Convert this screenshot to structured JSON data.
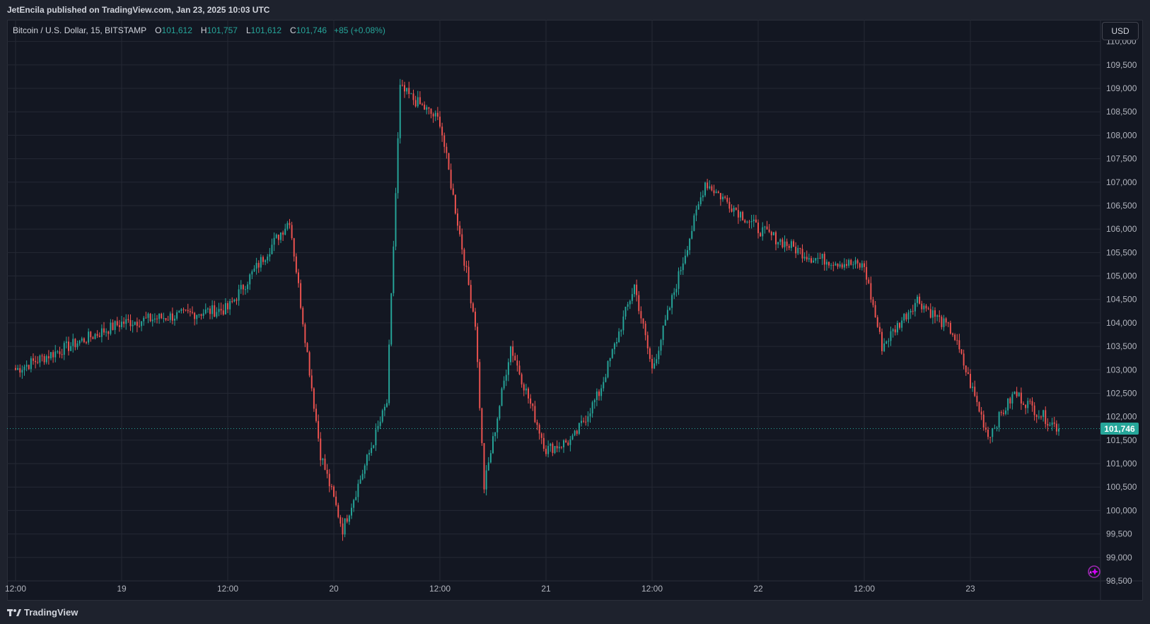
{
  "header": {
    "publisher_line": "JetEncila published on TradingView.com, Jan 23, 2025 10:03 UTC"
  },
  "legend": {
    "symbol": "Bitcoin / U.S. Dollar, 15, BITSTAMP",
    "open_label": "O",
    "open_value": "101,612",
    "high_label": "H",
    "high_value": "101,757",
    "low_label": "L",
    "low_value": "101,612",
    "close_label": "C",
    "close_value": "101,746",
    "change": "+85 (+0.08%)"
  },
  "currency_button": "USD",
  "last_price_tag": "101,746",
  "footer": {
    "brand": "TradingView"
  },
  "colors": {
    "up": "#26a69a",
    "down": "#ef5350",
    "background": "#131722",
    "grid": "#242834",
    "axis_text": "#b2b5be"
  },
  "chart_data": {
    "type": "candlestick",
    "title": "Bitcoin / U.S. Dollar, 15, BITSTAMP",
    "interval": "15",
    "exchange": "BITSTAMP",
    "currency": "USD",
    "y_axis_position": "right",
    "grid": true,
    "ylim": [
      98500,
      110100
    ],
    "y_ticks": [
      "110,000",
      "109,500",
      "109,000",
      "108,500",
      "108,000",
      "107,500",
      "107,000",
      "106,500",
      "106,000",
      "105,500",
      "105,000",
      "104,500",
      "104,000",
      "103,500",
      "103,000",
      "102,500",
      "102,000",
      "101,500",
      "101,000",
      "100,500",
      "100,000",
      "99,500",
      "99,000",
      "98,500"
    ],
    "x_ticks": [
      "12:00",
      "19",
      "12:00",
      "20",
      "12:00",
      "21",
      "12:00",
      "22",
      "12:00",
      "23"
    ],
    "last_price": 101746,
    "anchors": [
      {
        "x": "Jan 18 12:00",
        "price": 103000
      },
      {
        "x": "Jan 19 00:00",
        "price": 104000
      },
      {
        "x": "Jan 19 12:00",
        "price": 104300
      },
      {
        "x": "Jan 19 19:00",
        "price": 106200
      },
      {
        "x": "Jan 19 22:30",
        "price": 101200
      },
      {
        "x": "Jan 20 01:00",
        "price": 99600
      },
      {
        "x": "Jan 20 06:00",
        "price": 102300
      },
      {
        "x": "Jan 20 07:30",
        "price": 109000
      },
      {
        "x": "Jan 20 12:00",
        "price": 108300
      },
      {
        "x": "Jan 20 16:00",
        "price": 104000
      },
      {
        "x": "Jan 20 17:00",
        "price": 100500
      },
      {
        "x": "Jan 20 20:00",
        "price": 103500
      },
      {
        "x": "Jan 21 00:00",
        "price": 101300
      },
      {
        "x": "Jan 21 03:00",
        "price": 101500
      },
      {
        "x": "Jan 21 06:00",
        "price": 102500
      },
      {
        "x": "Jan 21 10:00",
        "price": 104800
      },
      {
        "x": "Jan 21 12:00",
        "price": 103000
      },
      {
        "x": "Jan 21 18:00",
        "price": 107000
      },
      {
        "x": "Jan 22 00:00",
        "price": 106000
      },
      {
        "x": "Jan 22 06:00",
        "price": 105400
      },
      {
        "x": "Jan 22 12:00",
        "price": 105200
      },
      {
        "x": "Jan 22 14:00",
        "price": 103500
      },
      {
        "x": "Jan 22 18:00",
        "price": 104500
      },
      {
        "x": "Jan 22 22:00",
        "price": 103800
      },
      {
        "x": "Jan 23 02:00",
        "price": 101600
      },
      {
        "x": "Jan 23 05:00",
        "price": 102500
      },
      {
        "x": "Jan 23 10:00",
        "price": 101746
      }
    ]
  }
}
